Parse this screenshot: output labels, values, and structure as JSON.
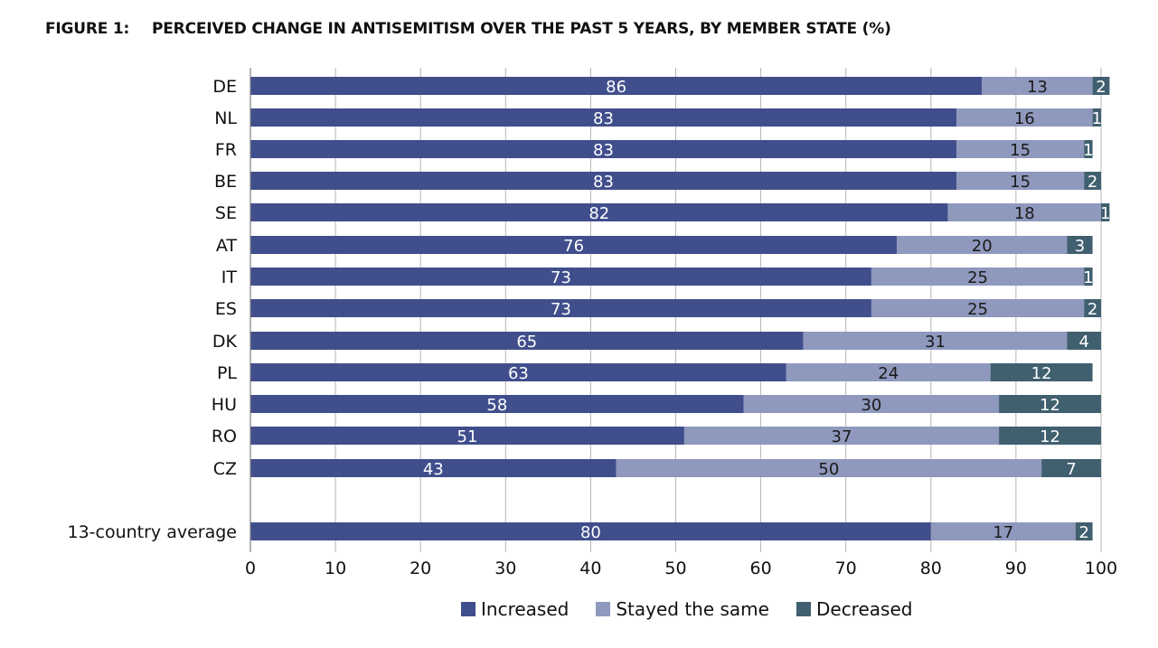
{
  "figure": {
    "number": "FIGURE 1:",
    "title": "PERCEIVED CHANGE IN ANTISEMITISM OVER THE PAST 5 YEARS, BY MEMBER STATE (%)"
  },
  "chart_data": {
    "type": "bar",
    "orientation": "horizontal",
    "stacked": true,
    "categories": [
      "DE",
      "NL",
      "FR",
      "BE",
      "SE",
      "AT",
      "IT",
      "ES",
      "DK",
      "PL",
      "HU",
      "RO",
      "CZ",
      "13-country average"
    ],
    "series": [
      {
        "name": "Increased",
        "color": "#414e8c",
        "values": [
          86,
          83,
          83,
          83,
          82,
          76,
          73,
          73,
          65,
          63,
          58,
          51,
          43,
          80
        ]
      },
      {
        "name": "Stayed the same",
        "color": "#8f98bd",
        "values": [
          13,
          16,
          15,
          15,
          18,
          20,
          25,
          25,
          31,
          24,
          30,
          37,
          50,
          17
        ]
      },
      {
        "name": "Decreased",
        "color": "#405f6f",
        "values": [
          2,
          1,
          1,
          2,
          1,
          3,
          1,
          2,
          4,
          12,
          12,
          12,
          7,
          2
        ]
      }
    ],
    "xlim": [
      0,
      100
    ],
    "xticks": [
      "0",
      "10",
      "20",
      "30",
      "40",
      "50",
      "60",
      "70",
      "80",
      "90",
      "100"
    ],
    "grid": "vertical",
    "legend": "bottom"
  }
}
